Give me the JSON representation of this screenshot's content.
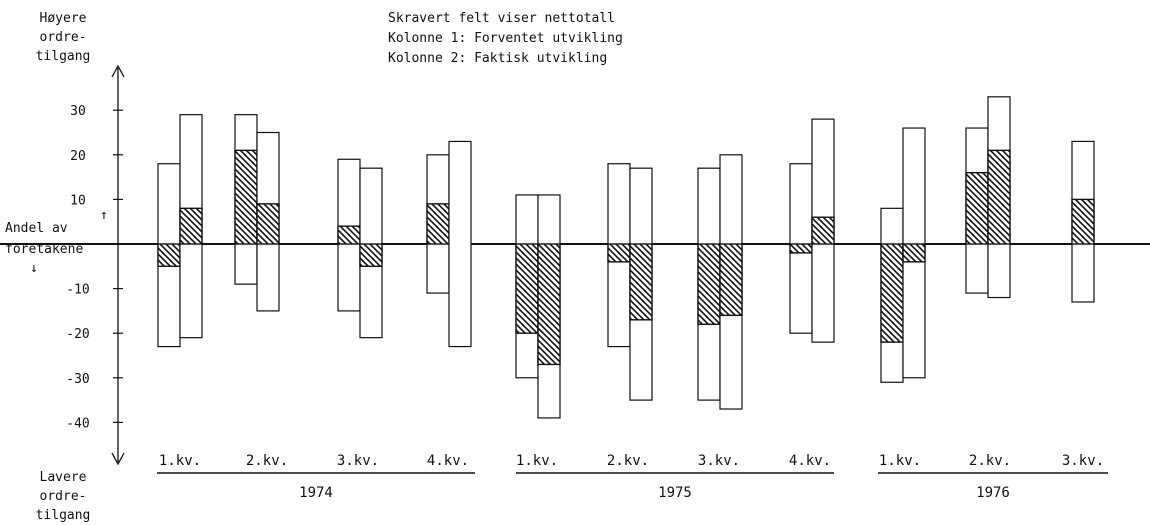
{
  "chart_data": {
    "type": "bar",
    "legend": [
      "Skravert felt viser nettotall",
      "Kolonne 1:  Forventet utvikling",
      "Kolonne 2:  Faktisk utvikling"
    ],
    "axis_top_label": [
      "Høyere",
      "ordre-",
      "tilgang"
    ],
    "axis_bottom_label": [
      "Lavere",
      "ordre-",
      "tilgang"
    ],
    "zero_label": [
      "Andel av",
      "foretakene"
    ],
    "yticks": [
      30,
      20,
      10,
      -10,
      -20,
      -30,
      -40
    ],
    "ylim": [
      -44,
      47
    ],
    "years": [
      {
        "label": "1974",
        "quarters": 4
      },
      {
        "label": "1975",
        "quarters": 4
      },
      {
        "label": "1976",
        "quarters": 3
      }
    ],
    "categories": [
      "1.kv.",
      "2.kv.",
      "3.kv.",
      "4.kv.",
      "1.kv.",
      "2.kv.",
      "3.kv.",
      "4.kv.",
      "1.kv.",
      "2.kv.",
      "3.kv."
    ],
    "series": [
      {
        "name": "Kolonne 1:  Forventet utvikling",
        "higher": [
          18,
          29,
          19,
          20,
          11,
          18,
          17,
          18,
          8,
          26,
          null
        ],
        "lower": [
          -23,
          -9,
          -15,
          -11,
          -30,
          -23,
          -35,
          -20,
          -31,
          -11,
          null
        ],
        "net": [
          -5,
          21,
          4,
          9,
          -20,
          -4,
          -18,
          -2,
          -22,
          16,
          null
        ]
      },
      {
        "name": "Kolonne 2:  Faktisk utvikling",
        "higher": [
          29,
          25,
          17,
          23,
          11,
          17,
          20,
          28,
          26,
          33,
          23
        ],
        "lower": [
          -21,
          -15,
          -21,
          -23,
          -39,
          -35,
          -37,
          -22,
          -30,
          -12,
          -13
        ],
        "net": [
          8,
          9,
          -5,
          null,
          -27,
          -17,
          -16,
          6,
          -4,
          21,
          10
        ]
      }
    ]
  }
}
